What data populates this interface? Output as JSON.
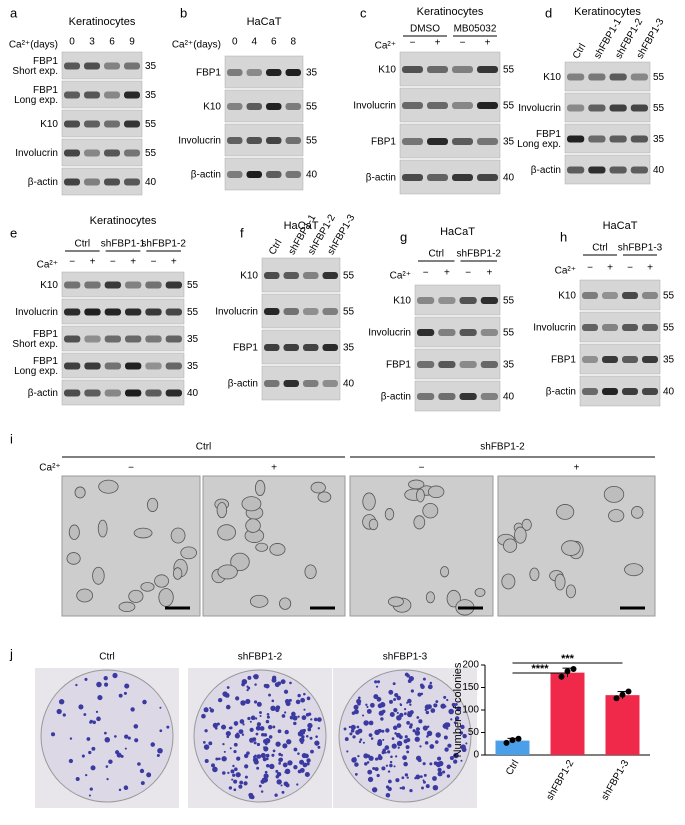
{
  "panels": [
    {
      "label": "a",
      "title": "Keratinocytes",
      "condition": "Ca²⁺(days)",
      "lanes": [
        0,
        3,
        6,
        9
      ],
      "rows": [
        {
          "name": [
            "FBP1",
            "Short exp."
          ],
          "mw": 35
        },
        {
          "name": [
            "FBP1",
            "Long exp."
          ],
          "mw": 35
        },
        {
          "name": [
            "K10"
          ],
          "mw": 55
        },
        {
          "name": [
            "Involucrin"
          ],
          "mw": 55
        },
        {
          "name": [
            "β-actin"
          ],
          "mw": 40
        }
      ]
    },
    {
      "label": "b",
      "title": "HaCaT",
      "condition": "Ca²⁺(days)",
      "lanes": [
        0,
        4,
        6,
        8
      ],
      "rows": [
        {
          "name": [
            "FBP1"
          ],
          "mw": 35
        },
        {
          "name": [
            "K10"
          ],
          "mw": 55
        },
        {
          "name": [
            "Involucrin"
          ],
          "mw": 55
        },
        {
          "name": [
            "β-actin"
          ],
          "mw": 40
        }
      ]
    },
    {
      "label": "c",
      "title": "Keratinocytes",
      "groups": [
        "DMSO",
        "MB05032"
      ],
      "condition": "Ca²⁺",
      "lanes": [
        "−",
        "+",
        "−",
        "+"
      ],
      "rows": [
        {
          "name": [
            "K10"
          ],
          "mw": 55
        },
        {
          "name": [
            "Involucrin"
          ],
          "mw": 55
        },
        {
          "name": [
            "FBP1"
          ],
          "mw": 35
        },
        {
          "name": [
            "β-actin"
          ],
          "mw": 40
        }
      ]
    },
    {
      "label": "d",
      "title": "Keratinocytes",
      "rotated_lanes": [
        "Ctrl",
        "shFBP1-1",
        "shFBP1-2",
        "shFBP1-3"
      ],
      "rows": [
        {
          "name": [
            "K10"
          ],
          "mw": 55
        },
        {
          "name": [
            "Involucrin"
          ],
          "mw": 55
        },
        {
          "name": [
            "FBP1",
            "Long exp."
          ],
          "mw": 35
        },
        {
          "name": [
            "β-actin"
          ],
          "mw": 40
        }
      ]
    },
    {
      "label": "e",
      "title": "Keratinocytes",
      "groups": [
        "Ctrl",
        "shFBP1-1",
        "shFBP1-2"
      ],
      "condition": "Ca²⁺",
      "lanes": [
        "−",
        "+",
        "−",
        "+",
        "−",
        "+"
      ],
      "rows": [
        {
          "name": [
            "K10"
          ],
          "mw": 55
        },
        {
          "name": [
            "Involucrin"
          ],
          "mw": 55
        },
        {
          "name": [
            "FBP1",
            "Short exp."
          ],
          "mw": 35
        },
        {
          "name": [
            "FBP1",
            "Long exp."
          ],
          "mw": 35
        },
        {
          "name": [
            "β-actin"
          ],
          "mw": 40
        }
      ]
    },
    {
      "label": "f",
      "title": "HaCaT",
      "rotated_lanes": [
        "Ctrl",
        "shFBP1-1",
        "shFBP1-2",
        "shFBP1-3"
      ],
      "rows": [
        {
          "name": [
            "K10"
          ],
          "mw": 55
        },
        {
          "name": [
            "Involucrin"
          ],
          "mw": 55
        },
        {
          "name": [
            "FBP1"
          ],
          "mw": 35
        },
        {
          "name": [
            "β-actin"
          ],
          "mw": 40
        }
      ]
    },
    {
      "label": "g",
      "title": "HaCaT",
      "groups": [
        "Ctrl",
        "shFBP1-2"
      ],
      "condition": "Ca²⁺",
      "lanes": [
        "−",
        "+",
        "−",
        "+"
      ],
      "rows": [
        {
          "name": [
            "K10"
          ],
          "mw": 55
        },
        {
          "name": [
            "Involucrin"
          ],
          "mw": 55
        },
        {
          "name": [
            "FBP1"
          ],
          "mw": 35
        },
        {
          "name": [
            "β-actin"
          ],
          "mw": 40
        }
      ]
    },
    {
      "label": "h",
      "title": "HaCaT",
      "groups": [
        "Ctrl",
        "shFBP1-3"
      ],
      "condition": "Ca²⁺",
      "lanes": [
        "−",
        "+",
        "−",
        "+"
      ],
      "rows": [
        {
          "name": [
            "K10"
          ],
          "mw": 55
        },
        {
          "name": [
            "Involucrin"
          ],
          "mw": 55
        },
        {
          "name": [
            "FBP1"
          ],
          "mw": 35
        },
        {
          "name": [
            "β-actin"
          ],
          "mw": 40
        }
      ]
    }
  ],
  "panel_i": {
    "label": "i",
    "condition": "Ca²⁺",
    "groups": [
      "Ctrl",
      "shFBP1-2"
    ],
    "lanes": [
      "−",
      "+",
      "−",
      "+"
    ]
  },
  "panel_j": {
    "label": "j",
    "plates": [
      "Ctrl",
      "shFBP1-2",
      "shFBP1-3"
    ]
  },
  "chart_data": {
    "type": "bar",
    "y_label": "Number of colonies",
    "categories": [
      "Ctrl",
      "shFBP1-2",
      "shFBP1-3"
    ],
    "values": [
      32,
      183,
      133
    ],
    "errors": [
      5,
      10,
      8
    ],
    "points": [
      [
        27,
        33,
        36
      ],
      [
        174,
        186,
        191
      ],
      [
        126,
        134,
        141
      ]
    ],
    "colors": [
      "#4a9fe8",
      "#f0284a",
      "#f0284a"
    ],
    "ylim": [
      0,
      200
    ],
    "yticks": [
      0,
      50,
      100,
      150,
      200
    ],
    "annotations": [
      "***",
      "****"
    ]
  }
}
